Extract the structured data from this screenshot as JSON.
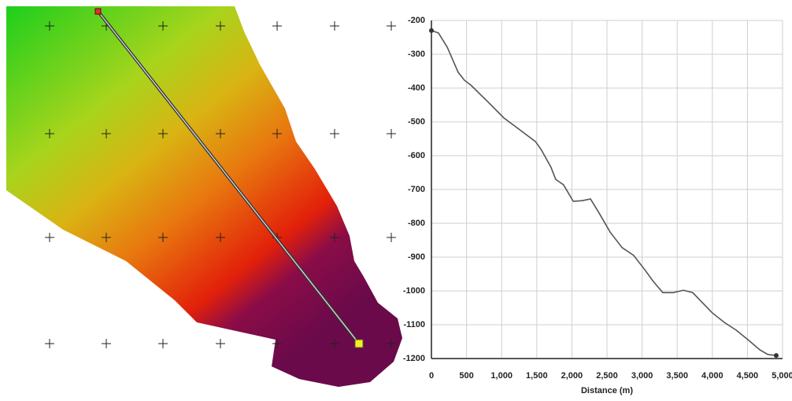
{
  "chart_data": {
    "type": "line",
    "xlabel": "Distance (m)",
    "x": [
      0,
      100,
      225,
      380,
      470,
      560,
      810,
      1030,
      1255,
      1480,
      1560,
      1700,
      1770,
      1880,
      2020,
      2150,
      2265,
      2380,
      2545,
      2715,
      2880,
      3030,
      3160,
      3295,
      3440,
      3590,
      3720,
      3860,
      4000,
      4170,
      4340,
      4505,
      4675,
      4790,
      4910
    ],
    "series": [
      {
        "color": "#555555",
        "values": [
          -230,
          -237,
          -279,
          -353,
          -377,
          -391,
          -442,
          -488,
          -523,
          -558,
          -581,
          -633,
          -670,
          -686,
          -735,
          -733,
          -728,
          -767,
          -826,
          -872,
          -895,
          -935,
          -972,
          -1005,
          -1005,
          -998,
          -1005,
          -1035,
          -1065,
          -1093,
          -1116,
          -1144,
          -1174,
          -1188,
          -1191
        ]
      }
    ],
    "xlim": [
      0,
      5000
    ],
    "xticks": [
      0,
      500,
      {
        "value": 1000,
        "label": "1,000"
      },
      {
        "value": 1500,
        "label": "1,500"
      },
      {
        "value": 2000,
        "label": "2,000"
      },
      {
        "value": 2500,
        "label": "2,500"
      },
      {
        "value": 3000,
        "label": "3,000"
      },
      {
        "value": 3500,
        "label": "3,500"
      },
      {
        "value": 4000,
        "label": "4,000"
      },
      {
        "value": 4500,
        "label": "4,500"
      },
      {
        "value": 5000,
        "label": "5,000"
      }
    ],
    "ylim": [
      -1200,
      -200
    ],
    "yticks": [
      -200,
      -300,
      -400,
      -500,
      -600,
      -700,
      -800,
      -900,
      -1000,
      -1100,
      -1200
    ],
    "grid": true
  }
}
